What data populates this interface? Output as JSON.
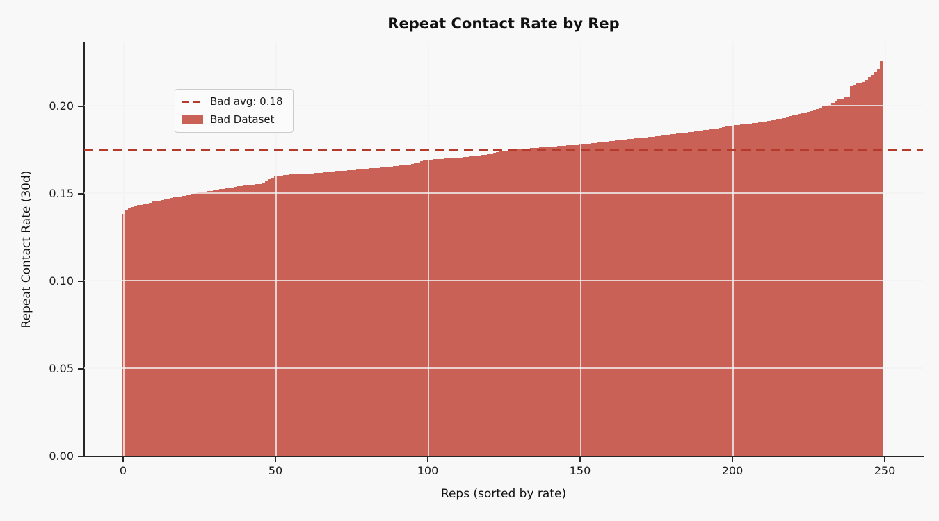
{
  "figure": {
    "title": "Repeat Contact Rate by Rep",
    "background_color": "#f8f8f8",
    "bar_color": "#c96157",
    "avg_line_color": "#b43a2b",
    "spine_color": "#262626"
  },
  "legend": {
    "entries": [
      {
        "label": "Bad avg: 0.18",
        "swatch": "dashed-line",
        "color": "#b43a2b"
      },
      {
        "label": "Bad Dataset",
        "swatch": "filled-rect",
        "color": "#c96157"
      }
    ]
  },
  "chart_data": {
    "type": "bar",
    "title": "Repeat Contact Rate by Rep",
    "xlabel": "Reps (sorted by rate)",
    "ylabel": "Repeat Contact Rate (30d)",
    "x_tick_labels": [
      "0",
      "50",
      "100",
      "150",
      "200",
      "250"
    ],
    "x_tick_values": [
      0,
      50,
      100,
      150,
      200,
      250
    ],
    "y_tick_labels": [
      "0.00",
      "0.05",
      "0.10",
      "0.15",
      "0.20"
    ],
    "y_tick_values": [
      0.0,
      0.05,
      0.1,
      0.15,
      0.2
    ],
    "xlim": [
      -12.8,
      262.5
    ],
    "ylim": [
      0,
      0.2369
    ],
    "grid": true,
    "legend_position": "upper-left",
    "avg_line": {
      "value": 0.175,
      "label": "Bad avg: 0.18",
      "style": "dashed"
    },
    "series": [
      {
        "name": "Bad Dataset",
        "color": "#c96157",
        "x_description": "rep index 0-249 sorted ascending by rate",
        "values": [
          0.1385,
          0.1405,
          0.1415,
          0.1425,
          0.143,
          0.1435,
          0.1438,
          0.1442,
          0.1445,
          0.145,
          0.1455,
          0.1458,
          0.1462,
          0.1465,
          0.1469,
          0.1472,
          0.1475,
          0.1479,
          0.1482,
          0.1486,
          0.149,
          0.1493,
          0.1497,
          0.15,
          0.1503,
          0.1507,
          0.151,
          0.1513,
          0.1515,
          0.1518,
          0.152,
          0.1523,
          0.1526,
          0.1529,
          0.1532,
          0.1535,
          0.1537,
          0.154,
          0.1542,
          0.1545,
          0.1547,
          0.1549,
          0.155,
          0.1552,
          0.1554,
          0.1555,
          0.1565,
          0.1575,
          0.1585,
          0.1592,
          0.16,
          0.1602,
          0.1604,
          0.1606,
          0.1608,
          0.161,
          0.1611,
          0.1612,
          0.1613,
          0.1614,
          0.1615,
          0.1616,
          0.1617,
          0.1618,
          0.1619,
          0.162,
          0.1622,
          0.1624,
          0.1626,
          0.1628,
          0.163,
          0.1631,
          0.1632,
          0.1633,
          0.1634,
          0.1635,
          0.1637,
          0.1639,
          0.1641,
          0.1643,
          0.1645,
          0.1646,
          0.1647,
          0.1648,
          0.1649,
          0.165,
          0.1652,
          0.1654,
          0.1656,
          0.1658,
          0.166,
          0.1662,
          0.1664,
          0.1666,
          0.1668,
          0.167,
          0.1675,
          0.168,
          0.1685,
          0.169,
          0.1695,
          0.1696,
          0.1697,
          0.1698,
          0.1699,
          0.17,
          0.1701,
          0.1702,
          0.1703,
          0.1704,
          0.1705,
          0.1707,
          0.1709,
          0.1711,
          0.1713,
          0.1715,
          0.1717,
          0.1719,
          0.1721,
          0.1723,
          0.1725,
          0.1729,
          0.1733,
          0.1737,
          0.1741,
          0.1745,
          0.1747,
          0.1749,
          0.1751,
          0.1753,
          0.1755,
          0.1756,
          0.1758,
          0.1759,
          0.1761,
          0.1762,
          0.1764,
          0.1765,
          0.1767,
          0.1768,
          0.177,
          0.1771,
          0.1772,
          0.1773,
          0.1774,
          0.1775,
          0.1776,
          0.1777,
          0.1778,
          0.1779,
          0.178,
          0.1782,
          0.1784,
          0.1786,
          0.1788,
          0.179,
          0.1792,
          0.1794,
          0.1796,
          0.1798,
          0.18,
          0.1802,
          0.1804,
          0.1806,
          0.1808,
          0.181,
          0.1812,
          0.1814,
          0.1816,
          0.1818,
          0.182,
          0.1822,
          0.1823,
          0.1825,
          0.1826,
          0.1828,
          0.183,
          0.1833,
          0.1835,
          0.1838,
          0.184,
          0.1842,
          0.1844,
          0.1846,
          0.1848,
          0.185,
          0.1852,
          0.1855,
          0.1857,
          0.186,
          0.1862,
          0.1865,
          0.1867,
          0.187,
          0.1872,
          0.1875,
          0.1878,
          0.1881,
          0.1884,
          0.1887,
          0.189,
          0.1892,
          0.1894,
          0.1896,
          0.1898,
          0.19,
          0.1902,
          0.1904,
          0.1906,
          0.1908,
          0.191,
          0.1913,
          0.1916,
          0.1919,
          0.1922,
          0.1925,
          0.193,
          0.1934,
          0.1939,
          0.1943,
          0.1948,
          0.1952,
          0.1956,
          0.196,
          0.1964,
          0.1968,
          0.1974,
          0.1979,
          0.1985,
          0.1992,
          0.2,
          0.2005,
          0.201,
          0.202,
          0.203,
          0.2038,
          0.2045,
          0.205,
          0.2055,
          0.2115,
          0.2125,
          0.213,
          0.2135,
          0.214,
          0.215,
          0.2165,
          0.218,
          0.2195,
          0.2215,
          0.2258
        ]
      }
    ]
  }
}
